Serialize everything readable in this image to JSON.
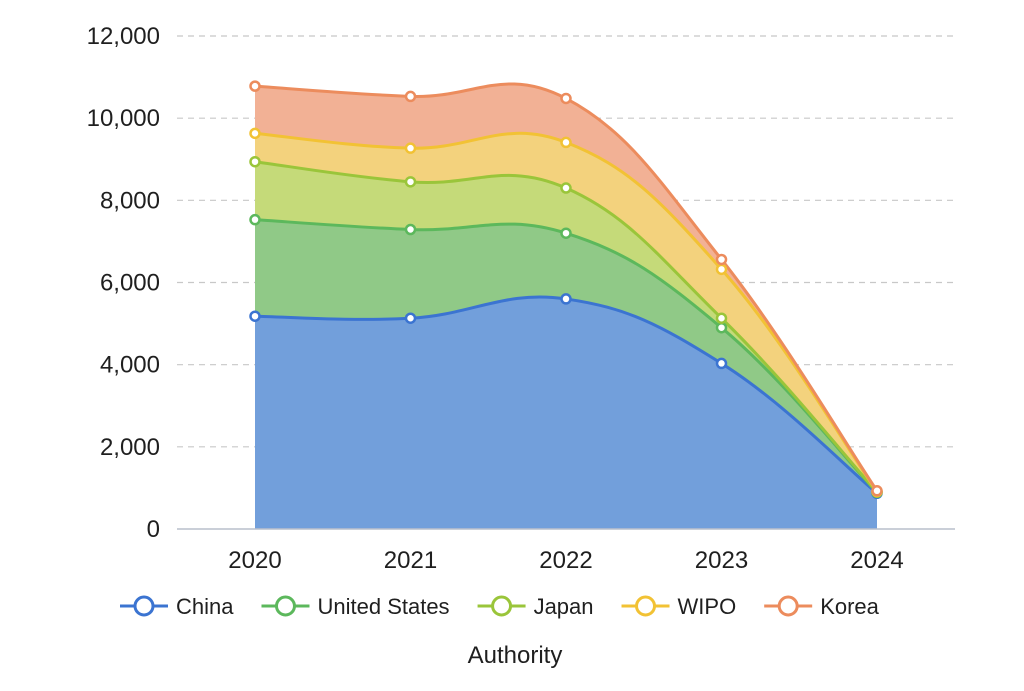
{
  "chart_data": {
    "type": "area",
    "stacked": true,
    "categories": [
      "2020",
      "2021",
      "2022",
      "2023",
      "2024"
    ],
    "series": [
      {
        "name": "China",
        "values": [
          5180,
          5130,
          5600,
          4030,
          870
        ],
        "color": "#3b74d1",
        "fill": "#729fdb"
      },
      {
        "name": "United States",
        "values": [
          2350,
          2160,
          1600,
          870,
          20
        ],
        "color": "#5cb85c",
        "fill": "#90c987"
      },
      {
        "name": "Japan",
        "values": [
          1410,
          1160,
          1100,
          230,
          10
        ],
        "color": "#9ac53a",
        "fill": "#c5da79"
      },
      {
        "name": "WIPO",
        "values": [
          690,
          820,
          1110,
          1190,
          10
        ],
        "color": "#f2c234",
        "fill": "#f3d27d"
      },
      {
        "name": "Korea",
        "values": [
          1150,
          1260,
          1070,
          240,
          20
        ],
        "color": "#ec8c5d",
        "fill": "#f2b195"
      }
    ],
    "xlabel": "Authority",
    "ylabel": "",
    "ylim": [
      0,
      12000
    ],
    "yticks": [
      "0",
      "2,000",
      "4,000",
      "6,000",
      "8,000",
      "10,000",
      "12,000"
    ],
    "grid": "horizontal-dashed",
    "legend_position": "bottom"
  }
}
